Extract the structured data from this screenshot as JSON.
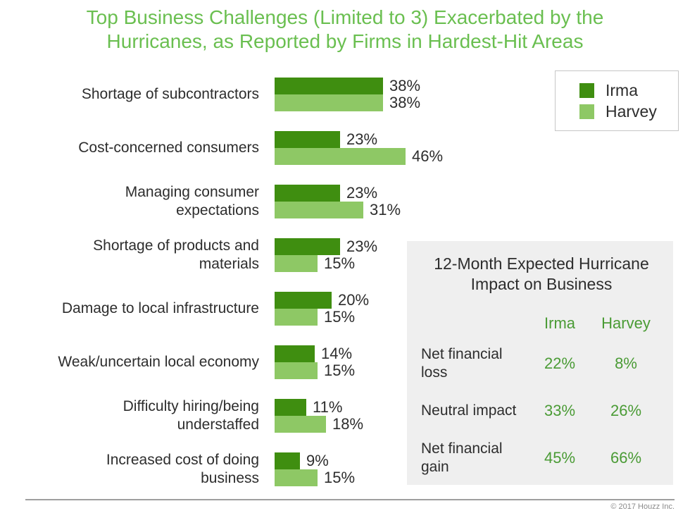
{
  "title": "Top Business Challenges (Limited to 3) Exacerbated by the\nHurricanes, as Reported by Firms in Hardest-Hit Areas",
  "colors": {
    "title_green": "#6abf50",
    "irma_dark_green": "#3f8e10",
    "harvey_light_green": "#8ec865",
    "table_background": "#efefef",
    "table_green_text": "#4a9b35",
    "text_dark": "#2d2d2d"
  },
  "legend": {
    "items": [
      {
        "label": "Irma",
        "color": "#3f8e10"
      },
      {
        "label": "Harvey",
        "color": "#8ec865"
      }
    ]
  },
  "chart_data": {
    "type": "bar",
    "orientation": "horizontal",
    "unit": "%",
    "title": "Top Business Challenges (Limited to 3) Exacerbated by the Hurricanes, as Reported by Firms in Hardest-Hit Areas",
    "categories": [
      "Shortage of subcontractors",
      "Cost-concerned consumers",
      "Managing consumer\nexpectations",
      "Shortage of products and\nmaterials",
      "Damage to local infrastructure",
      "Weak/uncertain local economy",
      "Difficulty hiring/being\nunderstaffed",
      "Increased cost of doing\nbusiness"
    ],
    "series": [
      {
        "name": "Irma",
        "color": "#3f8e10",
        "values": [
          38,
          23,
          23,
          23,
          20,
          14,
          11,
          9
        ]
      },
      {
        "name": "Harvey",
        "color": "#8ec865",
        "values": [
          38,
          46,
          31,
          15,
          15,
          15,
          18,
          15
        ]
      }
    ],
    "xlim": [
      0,
      50
    ],
    "grid": false,
    "value_labels": true,
    "legend_position": "top-right"
  },
  "side_table": {
    "title": "12-Month Expected Hurricane\nImpact on Business",
    "columns": [
      "Irma",
      "Harvey"
    ],
    "rows": [
      {
        "label": "Net financial loss",
        "values": [
          "22%",
          "8%"
        ]
      },
      {
        "label": "Neutral impact",
        "values": [
          "33%",
          "26%"
        ]
      },
      {
        "label": "Net financial\ngain",
        "values": [
          "45%",
          "66%"
        ]
      }
    ]
  },
  "footer": {
    "credit": "© 2017 Houzz Inc."
  }
}
